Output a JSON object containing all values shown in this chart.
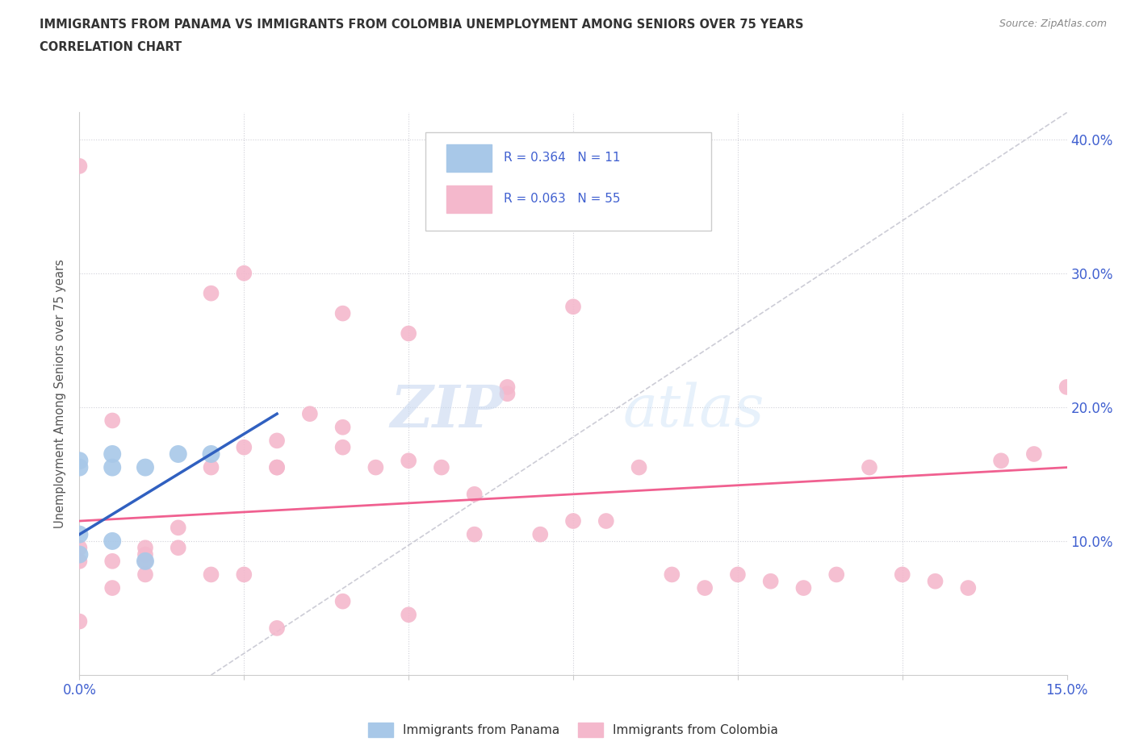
{
  "title_line1": "IMMIGRANTS FROM PANAMA VS IMMIGRANTS FROM COLOMBIA UNEMPLOYMENT AMONG SENIORS OVER 75 YEARS",
  "title_line2": "CORRELATION CHART",
  "source_text": "Source: ZipAtlas.com",
  "watermark_zip": "ZIP",
  "watermark_atlas": "atlas",
  "ylabel": "Unemployment Among Seniors over 75 years",
  "xlim": [
    0.0,
    0.15
  ],
  "ylim": [
    0.0,
    0.42
  ],
  "panama_color": "#a8c8e8",
  "colombia_color": "#f4b8cc",
  "panama_line_color": "#3060c0",
  "colombia_line_color": "#f06090",
  "trend_line_color": "#b8b8c8",
  "panama_R": 0.364,
  "panama_N": 11,
  "colombia_R": 0.063,
  "colombia_N": 55,
  "legend_R_color": "#4060d0",
  "panama_x": [
    0.0,
    0.0,
    0.005,
    0.01,
    0.015,
    0.02,
    0.005,
    0.0,
    0.01,
    0.005,
    0.0
  ],
  "panama_y": [
    0.155,
    0.105,
    0.1,
    0.085,
    0.165,
    0.165,
    0.155,
    0.09,
    0.155,
    0.165,
    0.16
  ],
  "colombia_x": [
    0.0,
    0.0,
    0.0,
    0.005,
    0.005,
    0.01,
    0.01,
    0.01,
    0.015,
    0.015,
    0.02,
    0.02,
    0.025,
    0.025,
    0.03,
    0.03,
    0.03,
    0.035,
    0.04,
    0.04,
    0.04,
    0.045,
    0.05,
    0.05,
    0.055,
    0.06,
    0.065,
    0.07,
    0.075,
    0.075,
    0.08,
    0.085,
    0.09,
    0.095,
    0.1,
    0.105,
    0.11,
    0.115,
    0.12,
    0.125,
    0.13,
    0.135,
    0.14,
    0.145,
    0.15,
    0.0,
    0.005,
    0.01,
    0.02,
    0.025,
    0.03,
    0.04,
    0.05,
    0.06,
    0.065
  ],
  "colombia_y": [
    0.085,
    0.095,
    0.38,
    0.085,
    0.19,
    0.085,
    0.09,
    0.095,
    0.095,
    0.11,
    0.155,
    0.285,
    0.17,
    0.3,
    0.155,
    0.155,
    0.175,
    0.195,
    0.17,
    0.185,
    0.27,
    0.155,
    0.16,
    0.255,
    0.155,
    0.135,
    0.215,
    0.105,
    0.115,
    0.275,
    0.115,
    0.155,
    0.075,
    0.065,
    0.075,
    0.07,
    0.065,
    0.075,
    0.155,
    0.075,
    0.07,
    0.065,
    0.16,
    0.165,
    0.215,
    0.04,
    0.065,
    0.075,
    0.075,
    0.075,
    0.035,
    0.055,
    0.045,
    0.105,
    0.21
  ]
}
